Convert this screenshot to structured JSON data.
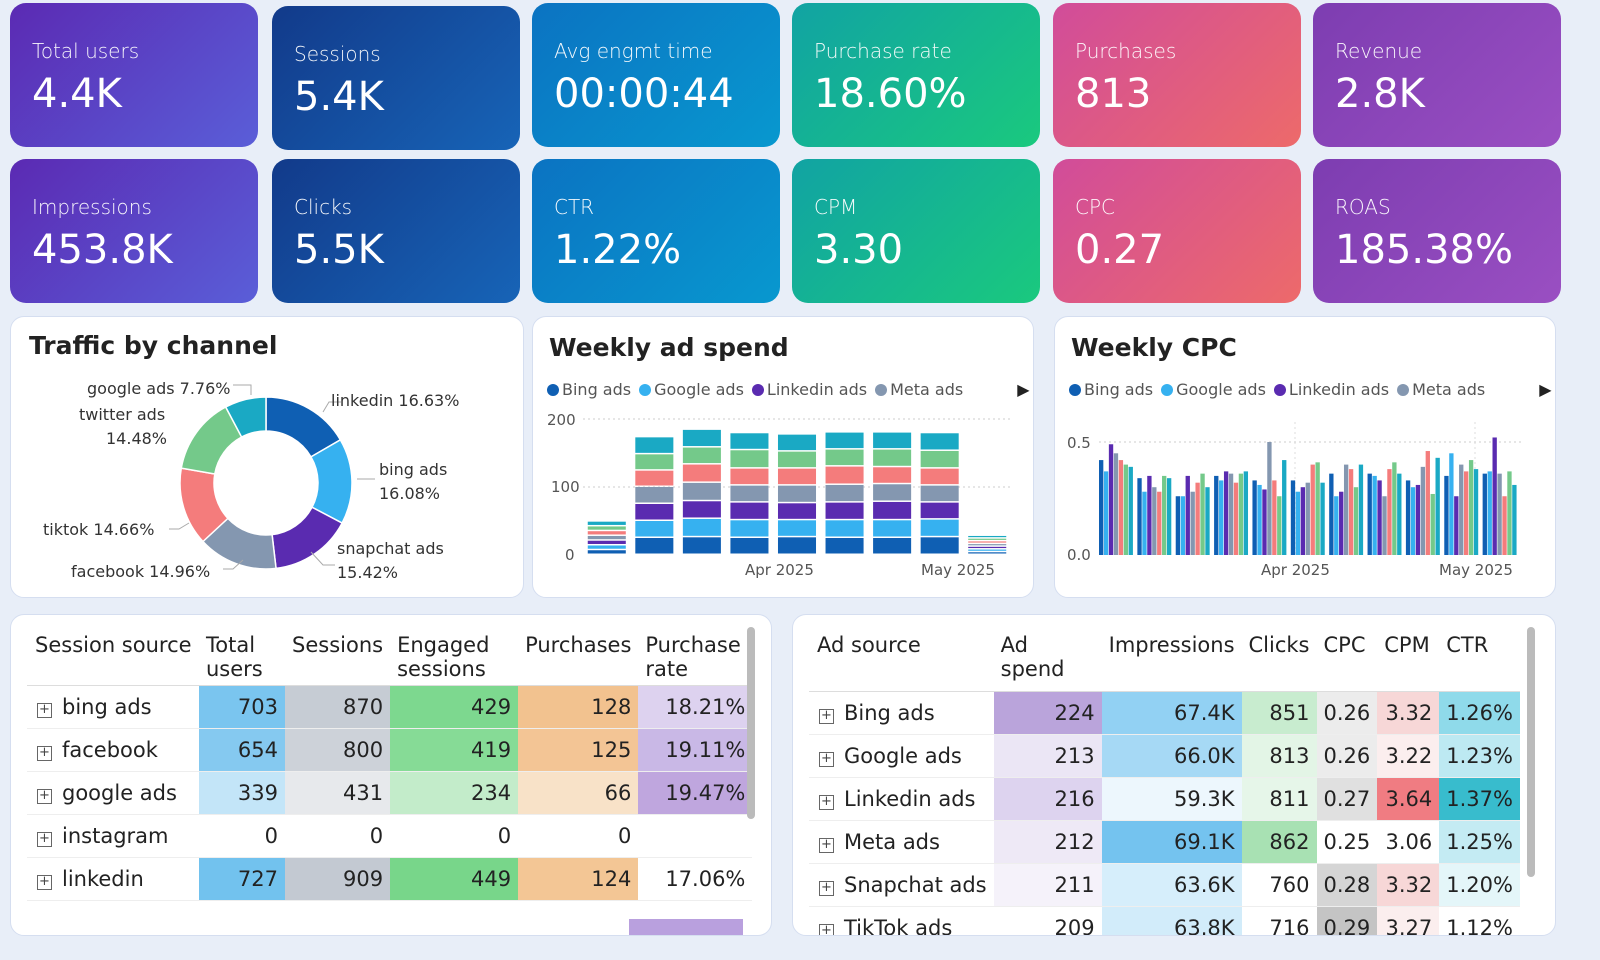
{
  "kpis_row1": [
    {
      "label": "Total users",
      "value": "4.4K"
    },
    {
      "label": "Sessions",
      "value": "5.4K"
    },
    {
      "label": "Avg engmt time",
      "value": "00:00:44"
    },
    {
      "label": "Purchase rate",
      "value": "18.60%"
    },
    {
      "label": "Purchases",
      "value": "813"
    },
    {
      "label": "Revenue",
      "value": "2.8K"
    }
  ],
  "kpis_row2": [
    {
      "label": "Impressions",
      "value": "453.8K"
    },
    {
      "label": "Clicks",
      "value": "5.5K"
    },
    {
      "label": "CTR",
      "value": "1.22%"
    },
    {
      "label": "CPM",
      "value": "3.30"
    },
    {
      "label": "CPC",
      "value": "0.27"
    },
    {
      "label": "ROAS",
      "value": "185.38%"
    }
  ],
  "colors": {
    "bing": "#0f5fb3",
    "google": "#36b1f0",
    "linkedin": "#5a2bb0",
    "meta": "#8497b0",
    "snapchat": "#e9727a",
    "tiktok": "#74c98a",
    "teal": "#1aa9c4"
  },
  "traffic": {
    "title": "Traffic by channel",
    "labels": {
      "google": "google ads 7.76%",
      "twitter1": "twitter ads",
      "twitter2": "14.48%",
      "linkedin": "linkedin 16.63%",
      "bing1": "bing ads",
      "bing2": "16.08%",
      "tiktok": "tiktok 14.66%",
      "snapchat1": "snapchat ads",
      "snapchat2": "15.42%",
      "facebook": "facebook 14.96%"
    }
  },
  "chart_data": [
    {
      "type": "pie",
      "title": "Traffic by channel",
      "categories": [
        "linkedin",
        "bing ads",
        "snapchat ads",
        "facebook",
        "tiktok",
        "twitter ads",
        "google ads"
      ],
      "values": [
        16.63,
        16.08,
        15.42,
        14.96,
        14.66,
        14.48,
        7.76
      ],
      "colors": [
        "#0f5fb3",
        "#36b1f0",
        "#5a2bb0",
        "#8497b0",
        "#f47c7c",
        "#74c98a",
        "#1aa9c4"
      ]
    },
    {
      "type": "bar",
      "stacked": true,
      "title": "Weekly ad spend",
      "ylim": [
        0,
        200
      ],
      "yticks": [
        0,
        100,
        200
      ],
      "xticks": [
        "Apr 2025",
        "May 2025"
      ],
      "legend_items": [
        "Bing ads",
        "Google ads",
        "Linkedin ads",
        "Meta ads"
      ],
      "layer_colors": [
        "#0f5fb3",
        "#36b1f0",
        "#5a2bb0",
        "#8497b0",
        "#f47c7c",
        "#74c98a",
        "#1aa9c4"
      ],
      "stacks": [
        [
          7,
          7,
          7,
          7,
          7,
          7,
          7
        ],
        [
          25,
          25,
          25,
          25,
          24,
          24,
          25
        ],
        [
          26,
          27,
          26,
          27,
          27,
          25,
          26
        ],
        [
          25,
          26,
          26,
          25,
          25,
          27,
          25
        ],
        [
          26,
          25,
          25,
          26,
          25,
          25,
          25
        ],
        [
          25,
          26,
          26,
          26,
          27,
          25,
          25
        ],
        [
          25,
          26,
          27,
          26,
          25,
          26,
          25
        ],
        [
          26,
          26,
          25,
          25,
          25,
          26,
          26
        ],
        [
          4,
          4,
          4,
          4,
          4,
          4,
          4
        ]
      ]
    },
    {
      "type": "bar",
      "title": "Weekly CPC",
      "ylim": [
        0,
        0.5
      ],
      "yticks": [
        0,
        0.5
      ],
      "xticks": [
        "Apr 2025",
        "May 2025"
      ],
      "legend_items": [
        "Bing ads",
        "Google ads",
        "Linkedin ads",
        "Meta ads"
      ],
      "group_colors": [
        "#0f5fb3",
        "#36b1f0",
        "#5a2bb0",
        "#8497b0",
        "#f47c7c",
        "#74c98a",
        "#1aa9c4"
      ],
      "groups": [
        [
          0.42,
          0.37,
          0.49,
          0.45,
          0.42,
          0.4,
          0.39
        ],
        [
          0.34,
          0.28,
          0.35,
          0.3,
          0.28,
          0.35,
          0.34
        ],
        [
          0.26,
          0.26,
          0.35,
          0.28,
          0.32,
          0.36,
          0.3
        ],
        [
          0.35,
          0.33,
          0.37,
          0.36,
          0.32,
          0.36,
          0.37
        ],
        [
          0.33,
          0.31,
          0.29,
          0.5,
          0.33,
          0.26,
          0.42
        ],
        [
          0.33,
          0.28,
          0.3,
          0.32,
          0.4,
          0.41,
          0.32
        ],
        [
          0.36,
          0.26,
          0.28,
          0.4,
          0.38,
          0.3,
          0.4
        ],
        [
          0.36,
          0.35,
          0.33,
          0.26,
          0.38,
          0.41,
          0.36
        ],
        [
          0.33,
          0.3,
          0.31,
          0.39,
          0.46,
          0.27,
          0.43
        ],
        [
          0.35,
          0.45,
          0.26,
          0.4,
          0.37,
          0.42,
          0.38
        ],
        [
          0.36,
          0.37,
          0.52,
          0.36,
          0.26,
          0.37,
          0.31
        ]
      ]
    }
  ],
  "spend": {
    "title": "Weekly ad spend",
    "legend": [
      "Bing ads",
      "Google ads",
      "Linkedin ads",
      "Meta ads"
    ],
    "y_ticks": [
      "200",
      "100",
      "0"
    ],
    "x_ticks": [
      "Apr 2025",
      "May 2025"
    ]
  },
  "cpc": {
    "title": "Weekly CPC",
    "legend": [
      "Bing ads",
      "Google ads",
      "Linkedin ads",
      "Meta ads"
    ],
    "y_ticks": [
      "0.5",
      "0.0"
    ],
    "x_ticks": [
      "Apr 2025",
      "May 2025"
    ]
  },
  "sessions_table": {
    "headers": [
      [
        "Session source"
      ],
      [
        "Total",
        "users"
      ],
      [
        "Sessions"
      ],
      [
        "Engaged",
        "sessions"
      ],
      [
        "Purchases"
      ],
      [
        "Purchase",
        "rate"
      ]
    ],
    "rows": [
      {
        "name": "bing ads",
        "cells": [
          "703",
          "870",
          "429",
          "128",
          "18.21%"
        ]
      },
      {
        "name": "facebook",
        "cells": [
          "654",
          "800",
          "419",
          "125",
          "19.11%"
        ]
      },
      {
        "name": "google ads",
        "cells": [
          "339",
          "431",
          "234",
          "66",
          "19.47%"
        ]
      },
      {
        "name": "instagram",
        "cells": [
          "0",
          "0",
          "0",
          "0",
          ""
        ]
      },
      {
        "name": "linkedin",
        "cells": [
          "727",
          "909",
          "449",
          "124",
          "17.06%"
        ]
      }
    ]
  },
  "ads_table": {
    "headers": [
      "Ad source",
      "Ad spend",
      "Impressions",
      "Clicks",
      "CPC",
      "CPM",
      "CTR"
    ],
    "rows": [
      {
        "name": "Bing ads",
        "cells": [
          "224",
          "67.4K",
          "851",
          "0.26",
          "3.32",
          "1.26%"
        ]
      },
      {
        "name": "Google ads",
        "cells": [
          "213",
          "66.0K",
          "813",
          "0.26",
          "3.22",
          "1.23%"
        ]
      },
      {
        "name": "Linkedin ads",
        "cells": [
          "216",
          "59.3K",
          "811",
          "0.27",
          "3.64",
          "1.37%"
        ]
      },
      {
        "name": "Meta ads",
        "cells": [
          "212",
          "69.1K",
          "862",
          "0.25",
          "3.06",
          "1.25%"
        ]
      },
      {
        "name": "Snapchat ads",
        "cells": [
          "211",
          "63.6K",
          "760",
          "0.28",
          "3.32",
          "1.20%"
        ]
      },
      {
        "name": "TikTok ads",
        "cells": [
          "209",
          "63.8K",
          "716",
          "0.29",
          "3.27",
          "1.12%"
        ]
      }
    ]
  }
}
